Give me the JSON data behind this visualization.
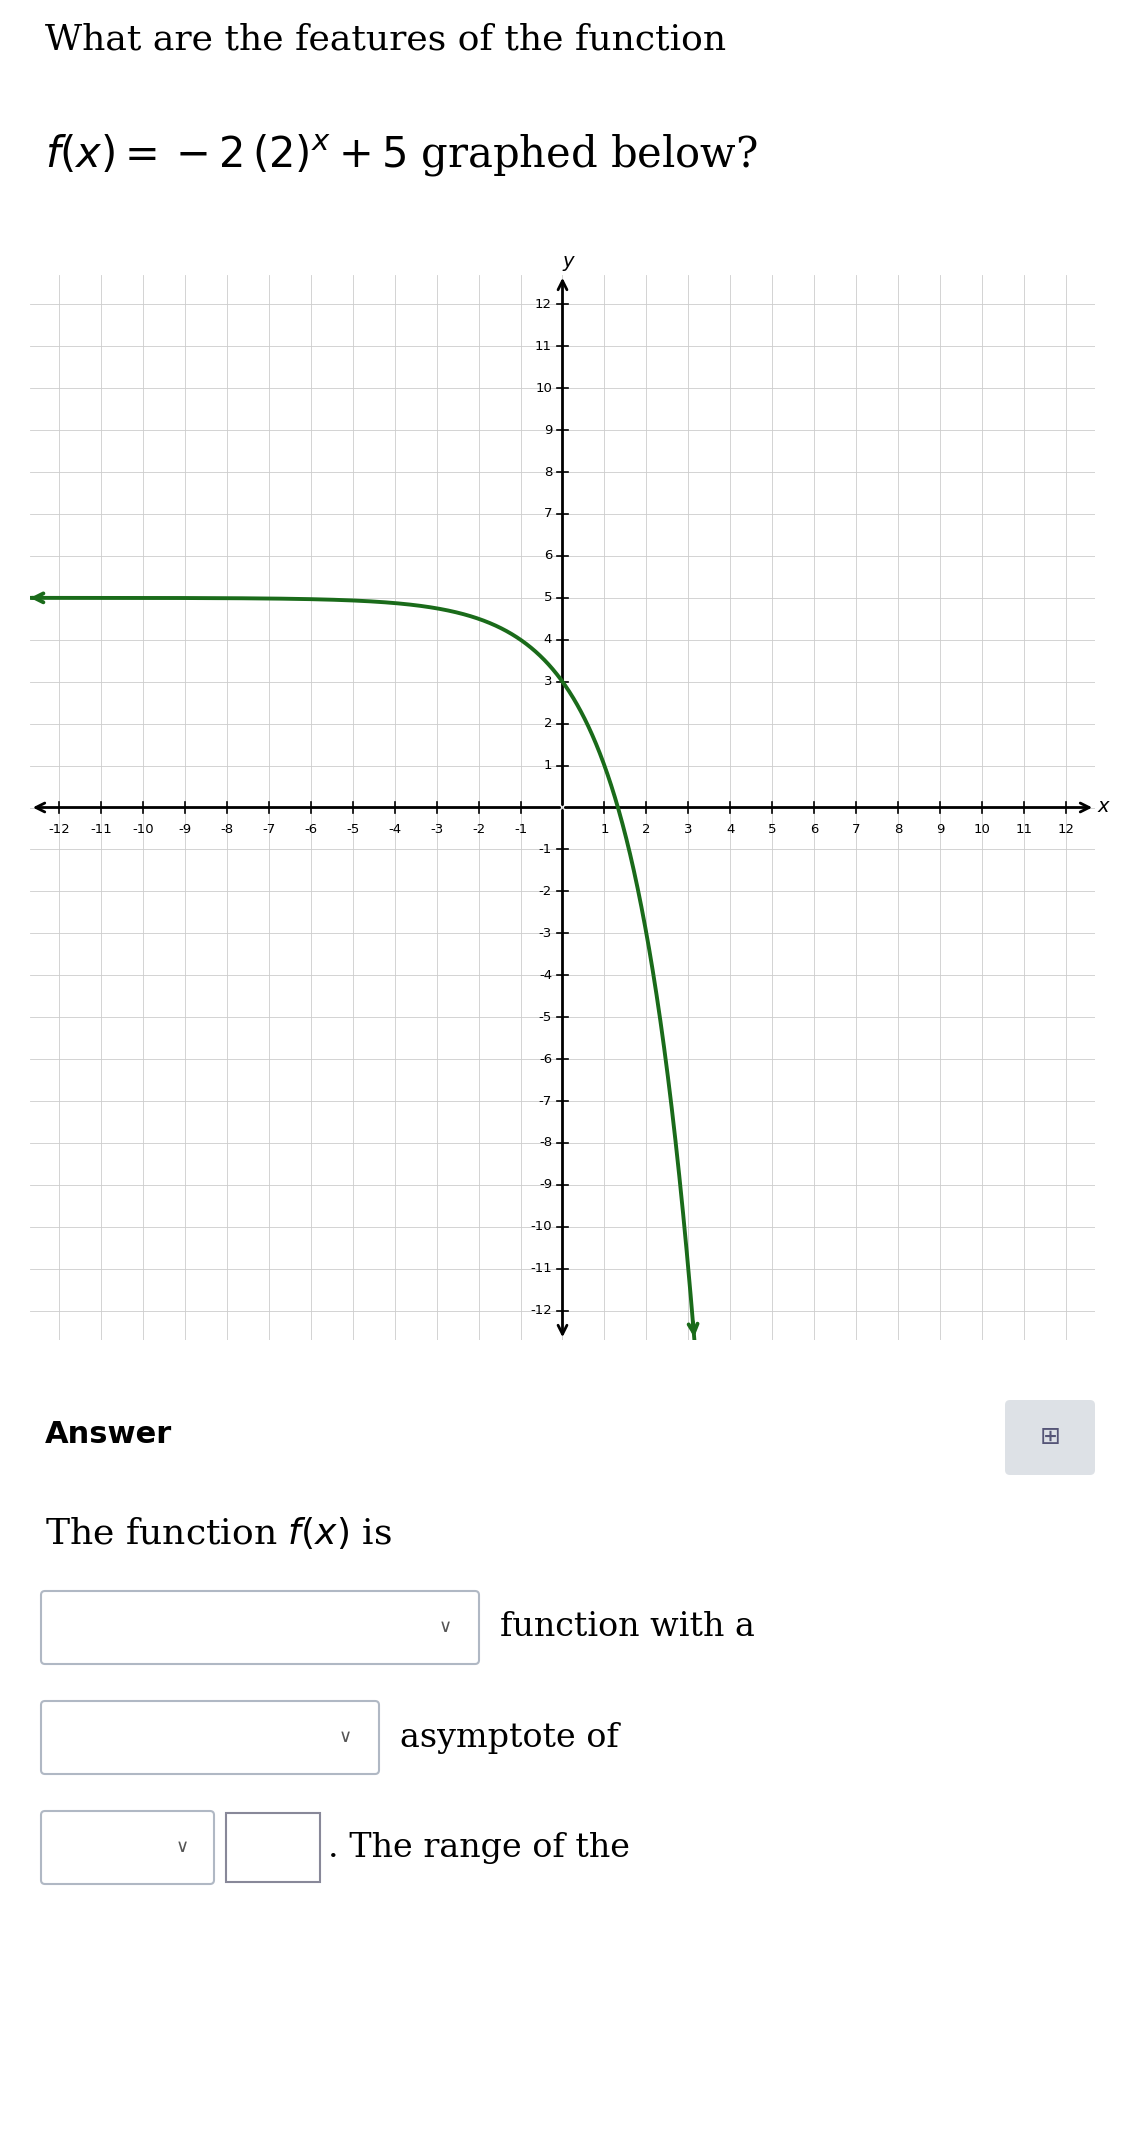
{
  "title_line1": "What are the features of the function",
  "title_line2": "$f(x) = -2\\,(2)^{x} + 5$ graphed below?",
  "x_min": -12,
  "x_max": 12,
  "y_min": -12,
  "y_max": 12,
  "curve_color": "#1a6b1a",
  "curve_linewidth": 2.8,
  "grid_color": "#cccccc",
  "grid_linewidth": 0.6,
  "axis_color": "#000000",
  "background_color": "#ffffff",
  "answer_bg_color": "#f0f4f8",
  "answer_label": "Answer",
  "keyboard_icon_color": "#dde1e6",
  "dropdown_border_color": "#b0b8c4",
  "tick_fontsize": 9.5,
  "axis_label_fontsize": 14,
  "title_fontsize1": 26,
  "title_fontsize2": 30
}
